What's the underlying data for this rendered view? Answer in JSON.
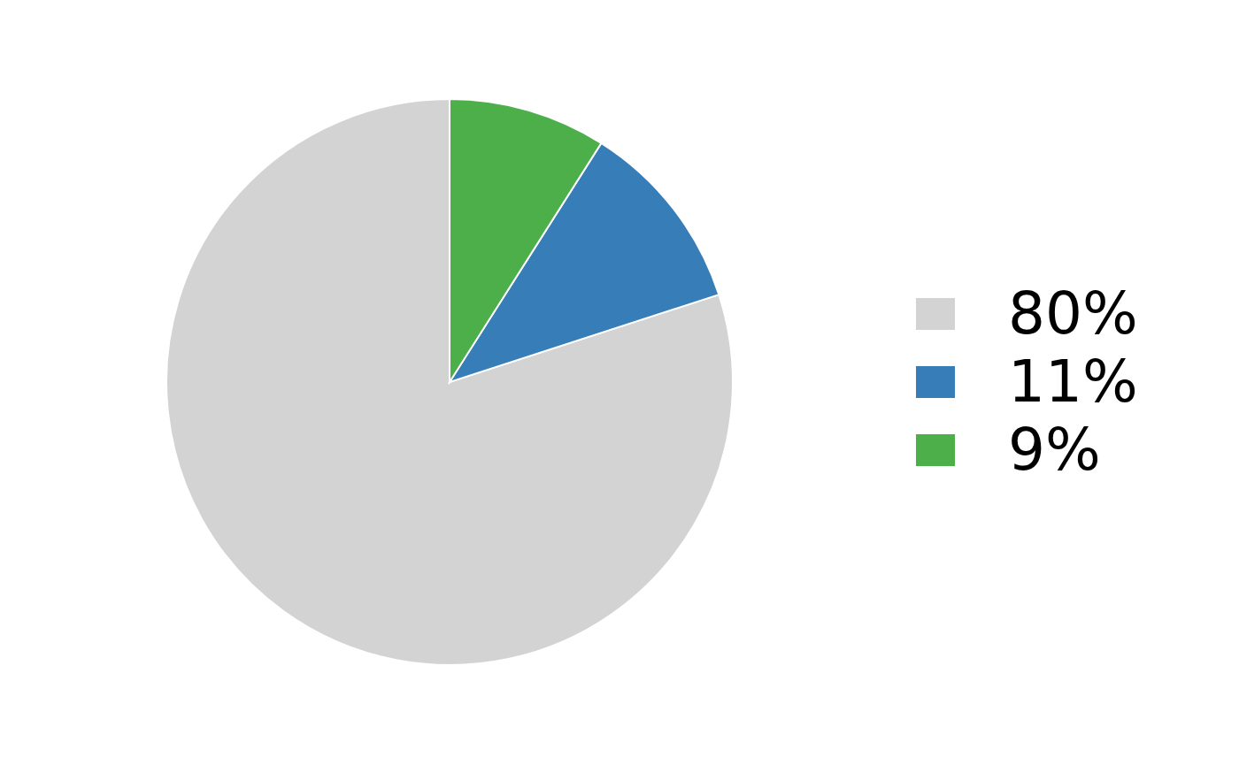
{
  "chart_data": {
    "type": "pie",
    "categories": [
      "80%",
      "11%",
      "9%"
    ],
    "values": [
      80,
      11,
      9
    ],
    "colors": [
      "#d3d3d3",
      "#377eb8",
      "#4daf4a"
    ],
    "legend": "right"
  }
}
